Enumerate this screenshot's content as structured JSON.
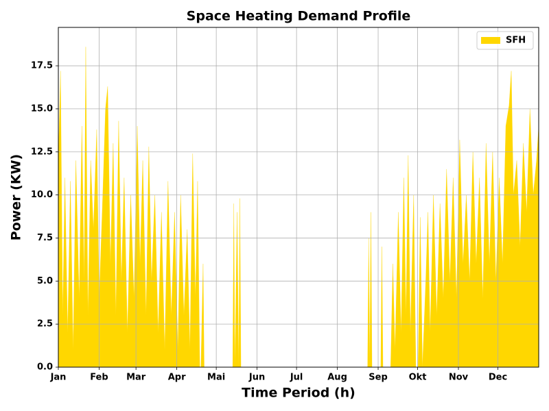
{
  "chart_data": {
    "type": "area",
    "title": "Space Heating Demand Profile",
    "x_label": "Time Period (h)",
    "y_label": "Power (KW)",
    "xlim": [
      0,
      8760
    ],
    "ylim": [
      0,
      19.73
    ],
    "xticks": [
      {
        "value": 0,
        "label": "Jan"
      },
      {
        "value": 744,
        "label": "Feb"
      },
      {
        "value": 1416,
        "label": "Mar"
      },
      {
        "value": 2160,
        "label": "Apr"
      },
      {
        "value": 2880,
        "label": "Mai"
      },
      {
        "value": 3624,
        "label": "Jun"
      },
      {
        "value": 4344,
        "label": "Jul"
      },
      {
        "value": 5088,
        "label": "Aug"
      },
      {
        "value": 5832,
        "label": "Sep"
      },
      {
        "value": 6552,
        "label": "Okt"
      },
      {
        "value": 7296,
        "label": "Nov"
      },
      {
        "value": 8016,
        "label": "Dec"
      }
    ],
    "yticks": [
      {
        "value": 0,
        "label": "0.0"
      },
      2.5,
      {
        "value": 5,
        "label": "5.0"
      },
      7.5,
      {
        "value": 10,
        "label": "10.0"
      },
      12.5,
      {
        "value": 15,
        "label": "15.0"
      },
      17.5
    ],
    "grid": true,
    "legend": "upper right",
    "x": [
      0,
      40,
      80,
      120,
      170,
      220,
      270,
      320,
      380,
      430,
      470,
      500,
      540,
      590,
      640,
      700,
      744,
      800,
      860,
      900,
      950,
      1000,
      1050,
      1100,
      1150,
      1200,
      1260,
      1320,
      1380,
      1440,
      1490,
      1540,
      1600,
      1650,
      1700,
      1760,
      1820,
      1880,
      1940,
      2000,
      2060,
      2120,
      2180,
      2230,
      2290,
      2350,
      2400,
      2450,
      2500,
      2540,
      2580,
      2600,
      2640,
      2660,
      3180,
      3200,
      3220,
      3260,
      3290,
      3310,
      3330,
      5640,
      5660,
      5680,
      5700,
      5720,
      5880,
      5900,
      5920,
      6060,
      6100,
      6140,
      6200,
      6250,
      6300,
      6340,
      6380,
      6420,
      6480,
      6520,
      6560,
      6600,
      6640,
      6700,
      6740,
      6780,
      6840,
      6900,
      6960,
      7020,
      7080,
      7140,
      7200,
      7260,
      7320,
      7380,
      7440,
      7500,
      7560,
      7620,
      7680,
      7740,
      7800,
      7860,
      7920,
      7980,
      8040,
      8100,
      8160,
      8220,
      8260,
      8300,
      8360,
      8420,
      8480,
      8540,
      8600,
      8660,
      8720,
      8760
    ],
    "series": [
      {
        "name": "SFH",
        "color": "#ffd700",
        "values": [
          12,
          17.2,
          3,
          11,
          2,
          10.8,
          1,
          12,
          4,
          14,
          5,
          18.6,
          3,
          12,
          8,
          13.8,
          4,
          9,
          15,
          16.3,
          6,
          13,
          3,
          14.3,
          5,
          11,
          2,
          10,
          4,
          14,
          6,
          12,
          3,
          12.8,
          5,
          10,
          2,
          9,
          1,
          10.8,
          3,
          9,
          1,
          10,
          3,
          8,
          1,
          12.4,
          4,
          10.8,
          0,
          0,
          6,
          0,
          0,
          9.5,
          0,
          9,
          0,
          9.8,
          0,
          0,
          7.5,
          0,
          9,
          0,
          0,
          7,
          0,
          0,
          6,
          1,
          9,
          2,
          11,
          3,
          12.3,
          2,
          10,
          0,
          0,
          8.7,
          0,
          5,
          9,
          2,
          10,
          3,
          9.5,
          4,
          11.5,
          5,
          11,
          4,
          13.2,
          6,
          10,
          5,
          12.5,
          6,
          11,
          4,
          13,
          6,
          12.5,
          5,
          11,
          6,
          14,
          15.2,
          17.2,
          10,
          12,
          7,
          13,
          9,
          15,
          10,
          12,
          14
        ]
      }
    ]
  }
}
